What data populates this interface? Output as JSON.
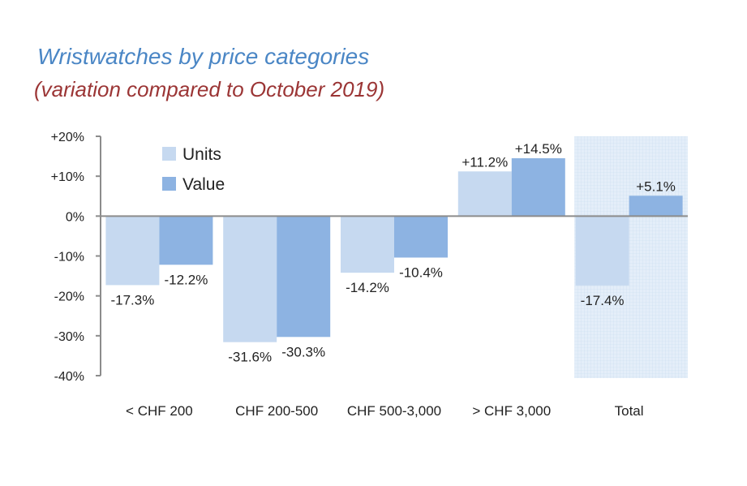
{
  "title": "Wristwatches by price categories",
  "subtitle": "(variation compared to October 2019)",
  "chart_data": {
    "type": "bar",
    "categories": [
      "< CHF 200",
      "CHF 200-500",
      "CHF 500-3,000",
      "> CHF 3,000",
      "Total"
    ],
    "series": [
      {
        "name": "Units",
        "values": [
          -17.3,
          -31.6,
          -14.2,
          11.2,
          -17.4
        ],
        "labels": [
          "-17.3%",
          "-31.6%",
          "-14.2%",
          "+11.2%",
          "-17.4%"
        ],
        "color": "#c6d9f0"
      },
      {
        "name": "Value",
        "values": [
          -12.2,
          -30.3,
          -10.4,
          14.5,
          5.1
        ],
        "labels": [
          "-12.2%",
          "-30.3%",
          "-10.4%",
          "+14.5%",
          "+5.1%"
        ],
        "color": "#8db3e2"
      }
    ],
    "yticks": [
      20,
      10,
      0,
      -10,
      -20,
      -30,
      -40
    ],
    "ytick_labels": [
      "+20%",
      "+10%",
      "0%",
      "-10%",
      "-20%",
      "-30%",
      "-40%"
    ],
    "ylim": [
      -40,
      20
    ],
    "highlight_category": "Total",
    "highlight_color": "#dce9f7",
    "legend_position": "top-left",
    "grid": false
  }
}
